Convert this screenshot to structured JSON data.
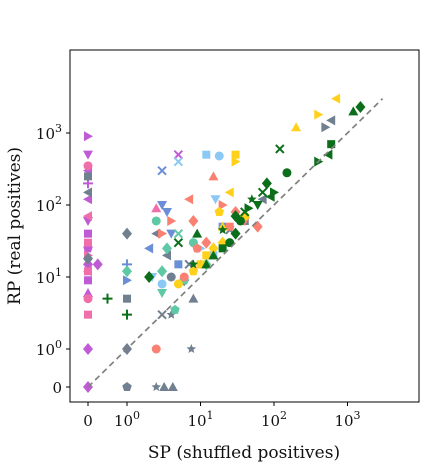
{
  "chart_data": {
    "type": "scatter",
    "title": "",
    "xlabel": "SP (shuffled positives)",
    "ylabel": "RP (real positives)",
    "x_scale": "symlog",
    "y_scale": "symlog",
    "xlim": [
      -0.3,
      5000
    ],
    "ylim": [
      -0.3,
      5000
    ],
    "x_ticks": [
      {
        "value": 0,
        "label": "0"
      },
      {
        "value": 1,
        "label": "10",
        "sup": "0"
      },
      {
        "value": 10,
        "label": "10",
        "sup": "1"
      },
      {
        "value": 100,
        "label": "10",
        "sup": "2"
      },
      {
        "value": 1000,
        "label": "10",
        "sup": "3"
      }
    ],
    "y_ticks": [
      {
        "value": 0,
        "label": "0"
      },
      {
        "value": 1,
        "label": "10",
        "sup": "0"
      },
      {
        "value": 10,
        "label": "10",
        "sup": "1"
      },
      {
        "value": 100,
        "label": "10",
        "sup": "2"
      },
      {
        "value": 1000,
        "label": "10",
        "sup": "3"
      }
    ],
    "reference_line": {
      "style": "dashed",
      "color": "#808080",
      "from": [
        0,
        0
      ],
      "to": [
        3000,
        3000
      ]
    },
    "grid": false,
    "legend": "none",
    "series": [
      {
        "color": "#c05bd6",
        "points": [
          {
            "x": 0,
            "y": 900,
            "m": "tri_right"
          },
          {
            "x": 0,
            "y": 500,
            "m": "tri_down"
          },
          {
            "x": 0,
            "y": 300,
            "m": "tri_left"
          },
          {
            "x": 0,
            "y": 200,
            "m": "plus"
          },
          {
            "x": 0,
            "y": 120,
            "m": "tri_left"
          },
          {
            "x": 0,
            "y": 60,
            "m": "tri_down"
          },
          {
            "x": 0,
            "y": 40,
            "m": "square"
          },
          {
            "x": 0,
            "y": 25,
            "m": "pentagon"
          },
          {
            "x": 0,
            "y": 15,
            "m": "diamond"
          },
          {
            "x": 0,
            "y": 9,
            "m": "square"
          },
          {
            "x": 0,
            "y": 6,
            "m": "tri_up"
          },
          {
            "x": 0,
            "y": 1,
            "m": "diamond"
          },
          {
            "x": 0,
            "y": 0,
            "m": "diamond"
          },
          {
            "x": 0.25,
            "y": 15,
            "m": "diamond"
          },
          {
            "x": 5,
            "y": 500,
            "m": "x"
          }
        ]
      },
      {
        "color": "#f06eaa",
        "points": [
          {
            "x": 0,
            "y": 350,
            "m": "circle"
          },
          {
            "x": 0,
            "y": 70,
            "m": "tri_left"
          },
          {
            "x": 0,
            "y": 30,
            "m": "square"
          },
          {
            "x": 0,
            "y": 20,
            "m": "tri_right"
          },
          {
            "x": 0,
            "y": 12,
            "m": "square"
          },
          {
            "x": 0,
            "y": 5,
            "m": "circle"
          },
          {
            "x": 0,
            "y": 3,
            "m": "square"
          },
          {
            "x": 0,
            "y": 12,
            "m": "tri_left"
          },
          {
            "x": 2.5,
            "y": 90,
            "m": "tri_up"
          }
        ]
      },
      {
        "color": "#708090",
        "points": [
          {
            "x": 0,
            "y": 250,
            "m": "square"
          },
          {
            "x": 0,
            "y": 150,
            "m": "tri_left"
          },
          {
            "x": 0,
            "y": 18,
            "m": "diamond"
          },
          {
            "x": 1,
            "y": 40,
            "m": "diamond"
          },
          {
            "x": 1,
            "y": 5,
            "m": "square"
          },
          {
            "x": 1,
            "y": 1,
            "m": "diamond"
          },
          {
            "x": 1,
            "y": 0,
            "m": "pentagon"
          },
          {
            "x": 2.5,
            "y": 0,
            "m": "star"
          },
          {
            "x": 3.2,
            "y": 0,
            "m": "tri_up"
          },
          {
            "x": 4.2,
            "y": 0,
            "m": "tri_up"
          },
          {
            "x": 3,
            "y": 3,
            "m": "x"
          },
          {
            "x": 4,
            "y": 3,
            "m": "star"
          },
          {
            "x": 7.5,
            "y": 1,
            "m": "star"
          },
          {
            "x": 4,
            "y": 10,
            "m": "circle"
          },
          {
            "x": 6,
            "y": 9,
            "m": "diamond"
          },
          {
            "x": 8,
            "y": 5,
            "m": "tri_up"
          },
          {
            "x": 600,
            "y": 1500,
            "m": "tri_left"
          },
          {
            "x": 500,
            "y": 1200,
            "m": "tri_right"
          },
          {
            "x": 40,
            "y": 60,
            "m": "square"
          },
          {
            "x": 70,
            "y": 120,
            "m": "tri_left"
          },
          {
            "x": 25,
            "y": 45,
            "m": "x"
          },
          {
            "x": 2.5,
            "y": 40,
            "m": "tri_left"
          },
          {
            "x": 3.5,
            "y": 20,
            "m": "tri_left"
          },
          {
            "x": 7,
            "y": 15,
            "m": "x"
          }
        ]
      },
      {
        "color": "#6b8fd6",
        "points": [
          {
            "x": 1,
            "y": 9,
            "m": "tri_right"
          },
          {
            "x": 1,
            "y": 15,
            "m": "plus"
          },
          {
            "x": 3,
            "y": 300,
            "m": "x"
          },
          {
            "x": 3,
            "y": 100,
            "m": "tri_down"
          },
          {
            "x": 5,
            "y": 15,
            "m": "square"
          },
          {
            "x": 4,
            "y": 40,
            "m": "tri_down"
          },
          {
            "x": 20,
            "y": 50,
            "m": "square"
          },
          {
            "x": 3.5,
            "y": 80,
            "m": "tri_down"
          },
          {
            "x": 2,
            "y": 25,
            "m": "tri_left"
          }
        ]
      },
      {
        "color": "#5fc9a6",
        "points": [
          {
            "x": 1,
            "y": 12,
            "m": "diamond"
          },
          {
            "x": 2.5,
            "y": 60,
            "m": "circle"
          },
          {
            "x": 3,
            "y": 12,
            "m": "diamond"
          },
          {
            "x": 3.5,
            "y": 25,
            "m": "diamond"
          },
          {
            "x": 4.5,
            "y": 3.5,
            "m": "pentagon"
          },
          {
            "x": 5,
            "y": 40,
            "m": "x"
          },
          {
            "x": 8,
            "y": 30,
            "m": "circle"
          },
          {
            "x": 6,
            "y": 9,
            "m": "pentagon"
          },
          {
            "x": 3,
            "y": 6,
            "m": "tri_down"
          },
          {
            "x": 12,
            "y": 15,
            "m": "diamond"
          }
        ]
      },
      {
        "color": "#8bc8f5",
        "points": [
          {
            "x": 2.2,
            "y": 10,
            "m": "tri_down"
          },
          {
            "x": 3,
            "y": 8,
            "m": "circle"
          },
          {
            "x": 5,
            "y": 400,
            "m": "x"
          },
          {
            "x": 16,
            "y": 120,
            "m": "tri_down"
          },
          {
            "x": 12,
            "y": 500,
            "m": "square"
          },
          {
            "x": 18,
            "y": 480,
            "m": "circle"
          },
          {
            "x": 10,
            "y": 25,
            "m": "tri_right"
          },
          {
            "x": 15,
            "y": 20,
            "m": "square"
          }
        ]
      },
      {
        "color": "#fa8072",
        "points": [
          {
            "x": 2.5,
            "y": 1,
            "m": "circle"
          },
          {
            "x": 3,
            "y": 40,
            "m": "tri_right"
          },
          {
            "x": 4,
            "y": 60,
            "m": "tri_right"
          },
          {
            "x": 6,
            "y": 10,
            "m": "circle"
          },
          {
            "x": 7,
            "y": 120,
            "m": "tri_left"
          },
          {
            "x": 8,
            "y": 60,
            "m": "diamond"
          },
          {
            "x": 9,
            "y": 25,
            "m": "pentagon"
          },
          {
            "x": 10,
            "y": 15,
            "m": "tri_up"
          },
          {
            "x": 12,
            "y": 30,
            "m": "diamond"
          },
          {
            "x": 20,
            "y": 100,
            "m": "tri_right"
          },
          {
            "x": 30,
            "y": 80,
            "m": "diamond"
          },
          {
            "x": 40,
            "y": 60,
            "m": "tri_down"
          },
          {
            "x": 25,
            "y": 50,
            "m": "square"
          },
          {
            "x": 60,
            "y": 50,
            "m": "diamond"
          },
          {
            "x": 15,
            "y": 250,
            "m": "tri_up"
          }
        ]
      },
      {
        "color": "#ffd11a",
        "points": [
          {
            "x": 700,
            "y": 3000,
            "m": "tri_left"
          },
          {
            "x": 400,
            "y": 1800,
            "m": "tri_right"
          },
          {
            "x": 200,
            "y": 1200,
            "m": "tri_up"
          },
          {
            "x": 30,
            "y": 400,
            "m": "tri_right"
          },
          {
            "x": 25,
            "y": 150,
            "m": "tri_left"
          },
          {
            "x": 18,
            "y": 80,
            "m": "pentagon"
          },
          {
            "x": 20,
            "y": 50,
            "m": "tri_up"
          },
          {
            "x": 15,
            "y": 25,
            "m": "diamond"
          },
          {
            "x": 10,
            "y": 15,
            "m": "square"
          },
          {
            "x": 8,
            "y": 12,
            "m": "pentagon"
          },
          {
            "x": 5,
            "y": 8,
            "m": "circle"
          },
          {
            "x": 40,
            "y": 70,
            "m": "circle"
          },
          {
            "x": 30,
            "y": 500,
            "m": "square"
          },
          {
            "x": 20,
            "y": 30,
            "m": "diamond"
          },
          {
            "x": 12,
            "y": 20,
            "m": "square"
          }
        ]
      },
      {
        "color": "#0b6e1a",
        "points": [
          {
            "x": 1500,
            "y": 2300,
            "m": "diamond"
          },
          {
            "x": 1200,
            "y": 2000,
            "m": "tri_up"
          },
          {
            "x": 600,
            "y": 700,
            "m": "square"
          },
          {
            "x": 550,
            "y": 500,
            "m": "tri_left"
          },
          {
            "x": 400,
            "y": 400,
            "m": "tri_right"
          },
          {
            "x": 120,
            "y": 600,
            "m": "x"
          },
          {
            "x": 150,
            "y": 280,
            "m": "circle"
          },
          {
            "x": 80,
            "y": 200,
            "m": "diamond"
          },
          {
            "x": 70,
            "y": 150,
            "m": "x"
          },
          {
            "x": 60,
            "y": 100,
            "m": "tri_down"
          },
          {
            "x": 40,
            "y": 80,
            "m": "x"
          },
          {
            "x": 30,
            "y": 40,
            "m": "diamond"
          },
          {
            "x": 25,
            "y": 30,
            "m": "circle"
          },
          {
            "x": 20,
            "y": 25,
            "m": "square"
          },
          {
            "x": 15,
            "y": 20,
            "m": "tri_up"
          },
          {
            "x": 12,
            "y": 15,
            "m": "tri_up"
          },
          {
            "x": 20,
            "y": 45,
            "m": "star"
          },
          {
            "x": 50,
            "y": 120,
            "m": "star"
          },
          {
            "x": 0.5,
            "y": 5,
            "m": "plus"
          },
          {
            "x": 1,
            "y": 3,
            "m": "plus"
          },
          {
            "x": 2,
            "y": 10,
            "m": "diamond"
          },
          {
            "x": 5,
            "y": 30,
            "m": "x"
          },
          {
            "x": 8,
            "y": 15,
            "m": "star"
          },
          {
            "x": 9,
            "y": 40,
            "m": "tri_up"
          },
          {
            "x": 35,
            "y": 60,
            "m": "circle"
          },
          {
            "x": 30,
            "y": 70,
            "m": "diamond"
          },
          {
            "x": 45,
            "y": 90,
            "m": "tri_right"
          },
          {
            "x": 90,
            "y": 130,
            "m": "tri_left"
          },
          {
            "x": 100,
            "y": 150,
            "m": "tri_right"
          }
        ]
      }
    ]
  }
}
